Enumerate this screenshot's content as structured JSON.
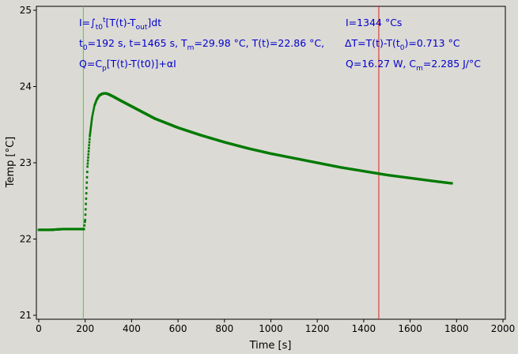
{
  "colors": {
    "background": "#dcdad5",
    "plot_background": "#dcdad5",
    "series": "#007a00",
    "start_line": "#33dd33",
    "end_line": "#dd2222",
    "annotation": "#0000cc"
  },
  "chart_data": {
    "type": "scatter",
    "title": "",
    "xlabel": "Time [s]",
    "ylabel": "Temp [°C]",
    "xlim": [
      0,
      2000
    ],
    "ylim": [
      21,
      25
    ],
    "xticks": [
      "0",
      "200",
      "400",
      "600",
      "800",
      "1000",
      "1200",
      "1400",
      "1600",
      "1800",
      "2000"
    ],
    "yticks": [
      "21",
      "22",
      "23",
      "24",
      "25"
    ],
    "grid": false,
    "legend": "none",
    "vlines": [
      {
        "x": 192,
        "color": "#33dd33"
      },
      {
        "x": 1465,
        "color": "#dd2222"
      }
    ],
    "series": [
      {
        "x": [
          0,
          50,
          100,
          150,
          190,
          195,
          200,
          205,
          210,
          220,
          230,
          240,
          250,
          260,
          270,
          280,
          290,
          300,
          320,
          350,
          400,
          450,
          500,
          600,
          700,
          800,
          900,
          1000,
          1100,
          1200,
          1300,
          1400,
          1500,
          1600,
          1700,
          1780
        ],
        "y": [
          22.12,
          22.12,
          22.13,
          22.13,
          22.13,
          22.13,
          22.25,
          22.6,
          22.95,
          23.35,
          23.6,
          23.75,
          23.83,
          23.88,
          23.9,
          23.91,
          23.91,
          23.9,
          23.87,
          23.82,
          23.74,
          23.66,
          23.58,
          23.46,
          23.36,
          23.27,
          23.19,
          23.12,
          23.06,
          23.0,
          22.94,
          22.89,
          22.84,
          22.8,
          22.76,
          22.73
        ]
      }
    ],
    "annotations": {
      "line1_left": {
        "pre": "I=∫",
        "sub1": "t0",
        "sup1": "t",
        "post": "[T(t)-T",
        "sub2": "out",
        "end": "]dt"
      },
      "line2_left": {
        "pre": "t",
        "sub1": "0",
        "mid": "=192 s,   t=1465 s,   T",
        "sub2": "m",
        "end": "=29.98 °C,  T(t)=22.86 °C,"
      },
      "line2_right": {
        "pre": "ΔT=T(t)-T(t",
        "sub1": "0",
        "end": ")=0.713 °C"
      },
      "line3_left": {
        "pre": "Q=C",
        "sub1": "p",
        "end": "[T(t)-T(t0)]+αI"
      },
      "line1_right": "I=1344 °Cs",
      "line3_right": {
        "pre": "Q=16.27 W,   C",
        "sub1": "m",
        "end": "=2.285 J/°C"
      }
    }
  }
}
